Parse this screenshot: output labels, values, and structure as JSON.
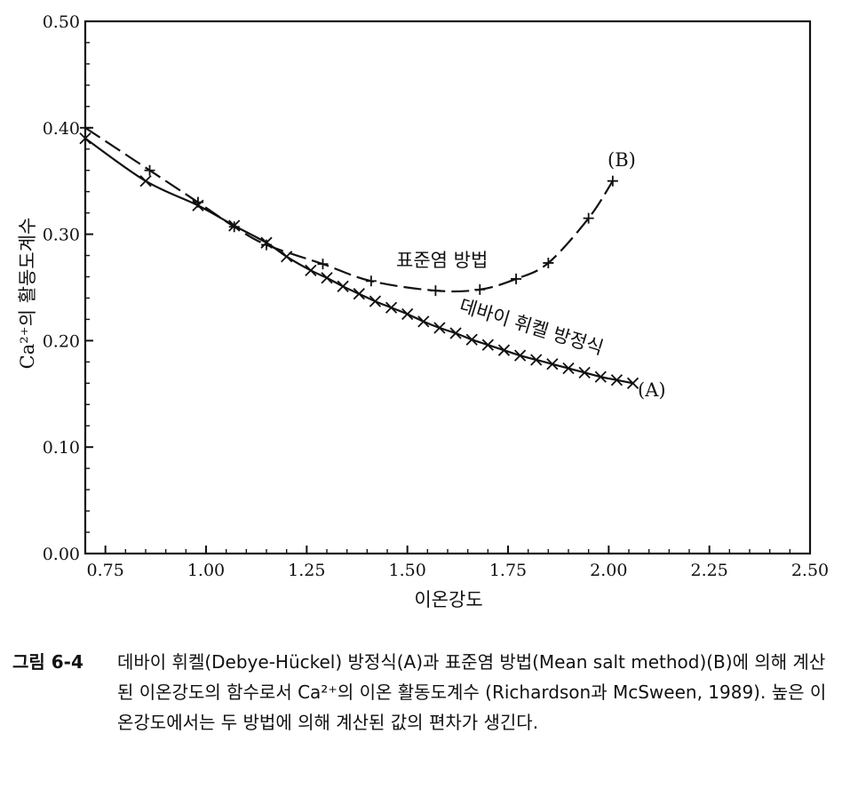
{
  "chart_data": {
    "type": "line",
    "xlabel": "이온강도",
    "ylabel": "Ca²⁺의 활동도계수",
    "xlim": [
      0.7,
      2.5
    ],
    "ylim": [
      0.0,
      0.5
    ],
    "xticks": [
      "0.75",
      "1.00",
      "1.25",
      "1.50",
      "1.75",
      "2.00",
      "2.25",
      "2.50"
    ],
    "yticks": [
      "0.00",
      "0.10",
      "0.20",
      "0.30",
      "0.40",
      "0.50"
    ],
    "grid": false,
    "series": [
      {
        "name": "(A)",
        "label": "데바이 휘켈 방정식",
        "marker": "x",
        "line": "solid",
        "x": [
          0.7,
          0.85,
          0.98,
          1.07,
          1.15,
          1.2,
          1.26,
          1.3,
          1.34,
          1.38,
          1.42,
          1.46,
          1.5,
          1.54,
          1.58,
          1.62,
          1.66,
          1.7,
          1.74,
          1.78,
          1.82,
          1.86,
          1.9,
          1.94,
          1.98,
          2.02,
          2.06
        ],
        "y": [
          0.39,
          0.35,
          0.327,
          0.308,
          0.292,
          0.279,
          0.266,
          0.259,
          0.251,
          0.244,
          0.237,
          0.231,
          0.225,
          0.218,
          0.212,
          0.207,
          0.201,
          0.196,
          0.191,
          0.186,
          0.182,
          0.178,
          0.174,
          0.17,
          0.166,
          0.163,
          0.16
        ]
      },
      {
        "name": "(B)",
        "label": "표준염 방법",
        "marker": "+",
        "line": "dashed",
        "x": [
          0.7,
          0.86,
          0.98,
          1.07,
          1.15,
          1.29,
          1.41,
          1.57,
          1.68,
          1.77,
          1.85,
          1.95,
          2.01
        ],
        "y": [
          0.4,
          0.36,
          0.33,
          0.307,
          0.29,
          0.272,
          0.256,
          0.247,
          0.248,
          0.258,
          0.273,
          0.315,
          0.35
        ]
      }
    ]
  },
  "caption": {
    "label": "그림 6-4",
    "text": "데바이 휘켈(Debye-Hückel) 방정식(A)과 표준염 방법(Mean salt method)(B)에 의해 계산된 이온강도의 함수로서 Ca²⁺의 이온 활동도계수 (Richardson과 McSween, 1989). 높은 이온강도에서는 두 방법에 의해 계산된 값의 편차가 생긴다."
  }
}
